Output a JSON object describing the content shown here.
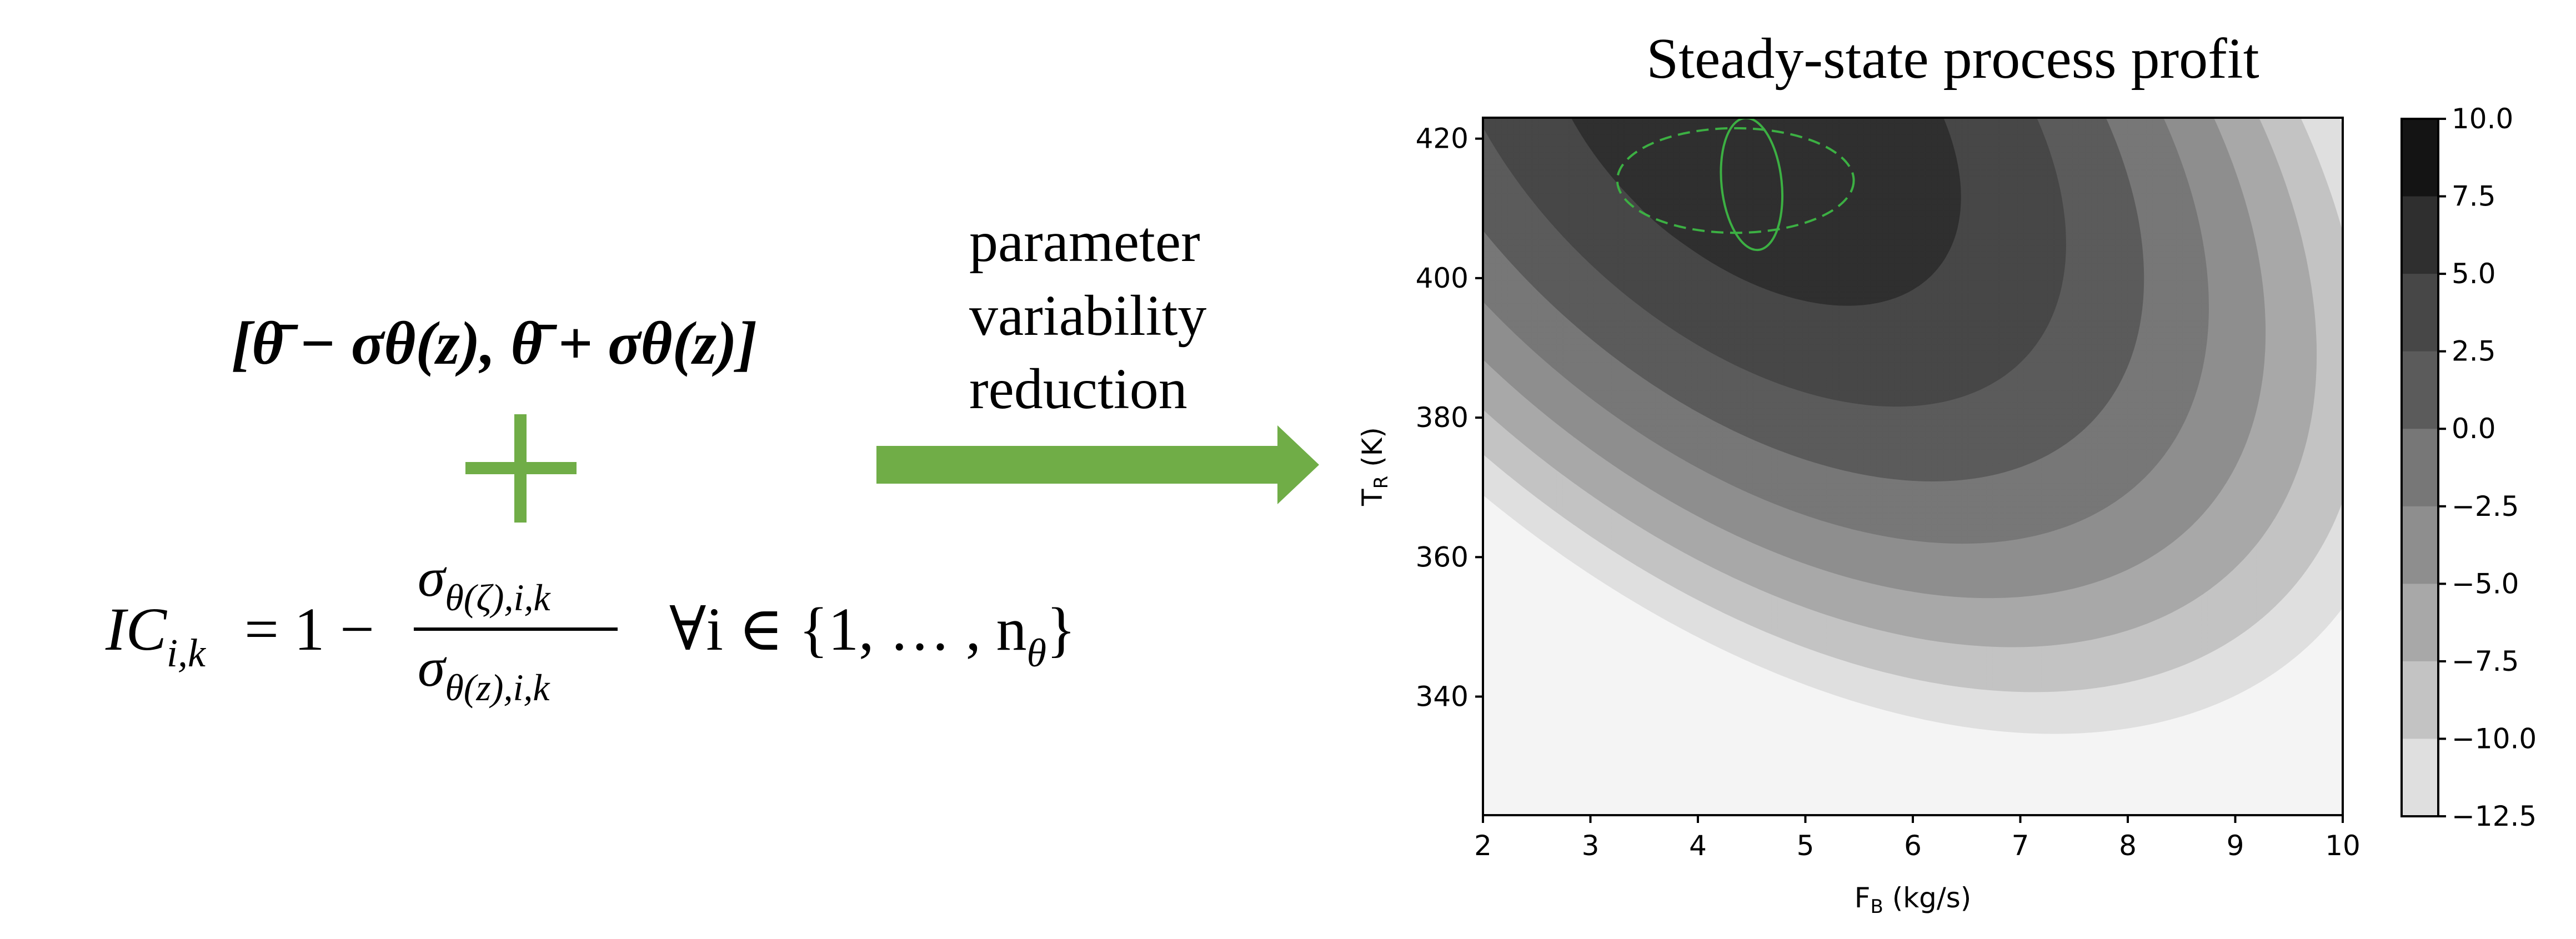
{
  "left": {
    "interval_formula": "[θ̄ − σθ(z), θ̄ + σθ(z)]",
    "ic_formula": {
      "lhs": "IC",
      "lhs_sub": "i,k",
      "equals": "= 1 −",
      "numerator": "σ",
      "numerator_sub": "θ(ζ),i,k",
      "denominator": "σ",
      "denominator_sub": "θ(z),i,k",
      "quantifier": "∀i ∈ {1, … , n",
      "quantifier_sub": "θ",
      "quantifier_close": "}"
    }
  },
  "arrow": {
    "label_lines": [
      "parameter",
      "variability",
      "reduction"
    ],
    "color": "#70ad47"
  },
  "plus_color": "#70ad47",
  "chart_data": {
    "type": "contourf",
    "title": "Steady-state process profit",
    "xlabel": "F_B (kg/s)",
    "ylabel": "T_R (K)",
    "xlim": [
      2,
      10
    ],
    "ylim": [
      323,
      423
    ],
    "xticks": [
      2,
      3,
      4,
      5,
      6,
      7,
      8,
      9,
      10
    ],
    "yticks": [
      340,
      360,
      380,
      400,
      420
    ],
    "colorbar": {
      "ticks": [
        "10.0",
        "7.5",
        "5.0",
        "2.5",
        "0.0",
        "−2.5",
        "−5.0",
        "−7.5",
        "−10.0",
        "−12.5"
      ],
      "levels": [
        10.0,
        7.5,
        5.0,
        2.5,
        0.0,
        -2.5,
        -5.0,
        -7.5,
        -10.0,
        -12.5
      ],
      "colors": [
        "#141414",
        "#2f2f2f",
        "#474747",
        "#5b5b5b",
        "#777777",
        "#8e8e8e",
        "#a8a8a8",
        "#c3c3c3",
        "#dfdfdf",
        "#f4f4f4"
      ]
    },
    "overlays": [
      {
        "shape": "ellipse",
        "style": "solid",
        "color": "#3cb043",
        "center": [
          4.5,
          413.5
        ],
        "semi_axes": [
          0.28,
          9.5
        ],
        "tilt": "slight"
      },
      {
        "shape": "ellipse",
        "style": "dashed",
        "color": "#3cb043",
        "center": [
          4.35,
          414
        ],
        "semi_axes": [
          1.1,
          7.5
        ],
        "tilt": "none"
      }
    ]
  }
}
